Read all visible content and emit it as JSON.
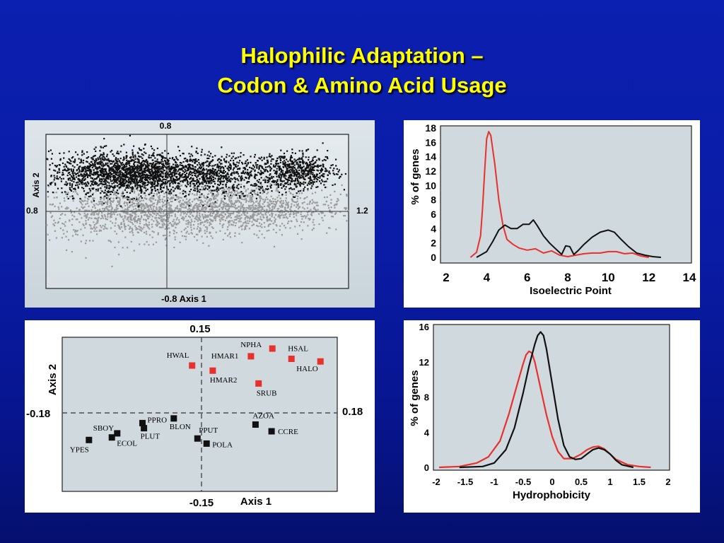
{
  "slide": {
    "title_line1": "Halophilic Adaptation –",
    "title_line2": "Codon  &  Amino Acid Usage"
  },
  "colors": {
    "background": "#0a1ca6",
    "title": "#ffff00",
    "halophile": "#e8302c",
    "non_halophile": "#111111",
    "panel_light": "#cfd9de"
  },
  "chart_data": [
    {
      "type": "scatter",
      "panel": "codon-usage-correspondence",
      "xlabel": "Axis 1",
      "ylabel": "Axis 2",
      "xlim": [
        -0.8,
        1.2
      ],
      "ylim": [
        -0.8,
        0.8
      ],
      "axis_labels": {
        "top": "0.8",
        "left": "0.8",
        "right": "1.2",
        "bottom": "-0.8 Axis 1",
        "side": "Axis 2"
      },
      "series": [
        {
          "color": "#111111",
          "clusters": [
            {
              "center": [
                -0.33,
                0.4
              ],
              "spread": [
                0.22,
                0.11
              ],
              "points": 1400
            },
            {
              "center": [
                0.25,
                0.4
              ],
              "spread": [
                0.32,
                0.1
              ],
              "points": 1200
            },
            {
              "center": [
                0.88,
                0.42
              ],
              "spread": [
                0.12,
                0.09
              ],
              "points": 500
            }
          ]
        },
        {
          "color": "#9a9a9a",
          "clusters": [
            {
              "center": [
                -0.15,
                0.0
              ],
              "spread": [
                0.38,
                0.14
              ],
              "points": 1300
            },
            {
              "center": [
                0.55,
                0.04
              ],
              "spread": [
                0.3,
                0.12
              ],
              "points": 900
            }
          ]
        }
      ]
    },
    {
      "type": "line",
      "panel": "isoelectric-point-distribution",
      "xlabel": "Isoelectric Point",
      "ylabel": "% of genes",
      "xlim": [
        2,
        14
      ],
      "ylim": [
        0,
        18
      ],
      "xticks": [
        "2",
        "4",
        "6",
        "8",
        "10",
        "12",
        "14"
      ],
      "yticks": [
        "0",
        "2",
        "4",
        "6",
        "8",
        "10",
        "12",
        "14",
        "16",
        "18"
      ],
      "series": [
        {
          "color": "#e8302c",
          "x": [
            3.2,
            3.5,
            3.7,
            3.8,
            3.9,
            4.0,
            4.1,
            4.2,
            4.4,
            4.6,
            4.8,
            5.0,
            5.3,
            5.6,
            6.0,
            6.4,
            6.8,
            7.2,
            7.6,
            8.0,
            8.4,
            8.8,
            9.2,
            9.6,
            10.0,
            10.4,
            10.8,
            11.2,
            11.6,
            12.0
          ],
          "y": [
            0.0,
            0.7,
            3.0,
            7.0,
            12.0,
            16.5,
            17.5,
            17.0,
            13.0,
            8.0,
            4.5,
            2.5,
            1.8,
            1.3,
            1.0,
            1.2,
            0.6,
            0.9,
            0.3,
            0.1,
            0.3,
            0.5,
            0.6,
            0.6,
            0.8,
            0.8,
            0.5,
            0.6,
            0.2,
            0.0
          ]
        },
        {
          "color": "#111111",
          "x": [
            3.5,
            4.0,
            4.3,
            4.6,
            4.9,
            5.2,
            5.5,
            5.8,
            6.1,
            6.3,
            6.5,
            6.8,
            7.1,
            7.4,
            7.7,
            7.9,
            8.1,
            8.3,
            8.5,
            8.8,
            9.2,
            9.6,
            10.0,
            10.3,
            10.6,
            11.0,
            11.4,
            11.8,
            12.2,
            12.6
          ],
          "y": [
            0.0,
            0.8,
            2.2,
            3.8,
            4.5,
            4.0,
            4.0,
            4.6,
            4.6,
            5.2,
            4.4,
            3.0,
            2.0,
            1.2,
            0.4,
            1.6,
            1.5,
            0.4,
            0.9,
            1.8,
            2.8,
            3.5,
            3.8,
            3.5,
            2.6,
            1.5,
            0.6,
            0.3,
            0.1,
            0.0
          ]
        }
      ]
    },
    {
      "type": "scatter",
      "panel": "amino-acid-usage-correspondence",
      "xlabel": "Axis 1",
      "ylabel": "Axis 2",
      "xlim": [
        -0.18,
        0.18
      ],
      "ylim": [
        -0.15,
        0.15
      ],
      "axis_labels": {
        "top": "0.15",
        "left": "-0.18",
        "right": "0.18",
        "bottom": "-0.15"
      },
      "points": [
        {
          "label": "HWAL",
          "x": -0.01,
          "y": 0.095,
          "group": "halophile"
        },
        {
          "label": "NPHA",
          "x": 0.095,
          "y": 0.128,
          "group": "halophile"
        },
        {
          "label": "HMAR1",
          "x": 0.067,
          "y": 0.113,
          "group": "halophile"
        },
        {
          "label": "HSAL",
          "x": 0.12,
          "y": 0.108,
          "group": "halophile"
        },
        {
          "label": "HALO",
          "x": 0.158,
          "y": 0.103,
          "group": "halophile"
        },
        {
          "label": "HMAR2",
          "x": 0.017,
          "y": 0.085,
          "group": "halophile"
        },
        {
          "label": "SRUB",
          "x": 0.077,
          "y": 0.06,
          "group": "halophile"
        },
        {
          "label": "BLON",
          "x": -0.034,
          "y": -0.008,
          "group": "non-halophile"
        },
        {
          "label": "PPRO",
          "x": -0.075,
          "y": -0.017,
          "group": "non-halophile"
        },
        {
          "label": "PLUT",
          "x": -0.073,
          "y": -0.027,
          "group": "non-halophile"
        },
        {
          "label": "SBOY",
          "x": -0.108,
          "y": -0.037,
          "group": "non-halophile"
        },
        {
          "label": "ECOL",
          "x": -0.115,
          "y": -0.045,
          "group": "non-halophile"
        },
        {
          "label": "YPES",
          "x": -0.145,
          "y": -0.05,
          "group": "non-halophile"
        },
        {
          "label": "PPUT",
          "x": -0.003,
          "y": -0.047,
          "group": "non-halophile"
        },
        {
          "label": "POLA",
          "x": 0.009,
          "y": -0.057,
          "group": "non-halophile"
        },
        {
          "label": "AZOA",
          "x": 0.073,
          "y": -0.02,
          "group": "non-halophile"
        },
        {
          "label": "CCRE",
          "x": 0.094,
          "y": -0.033,
          "group": "non-halophile"
        }
      ]
    },
    {
      "type": "line",
      "panel": "hydrophobicity-distribution",
      "xlabel": "Hydrophobicity",
      "ylabel": "% of genes",
      "xlim": [
        -2,
        2
      ],
      "ylim": [
        0,
        16
      ],
      "xticks": [
        "-2",
        "-1.5",
        "-1",
        "-0.5",
        "0",
        "0.5",
        "1",
        "1.5",
        "2"
      ],
      "yticks": [
        "0",
        "4",
        "8",
        "12",
        "16"
      ],
      "series": [
        {
          "color": "#e8302c",
          "x": [
            -1.95,
            -1.6,
            -1.3,
            -1.1,
            -0.9,
            -0.75,
            -0.6,
            -0.5,
            -0.45,
            -0.4,
            -0.35,
            -0.3,
            -0.2,
            -0.1,
            0.0,
            0.1,
            0.2,
            0.35,
            0.5,
            0.6,
            0.7,
            0.8,
            0.9,
            1.0,
            1.1,
            1.3,
            1.5,
            1.7
          ],
          "y": [
            0.0,
            0.1,
            0.5,
            1.2,
            3.0,
            6.0,
            9.5,
            11.8,
            12.8,
            13.2,
            13.0,
            12.0,
            9.0,
            6.0,
            3.5,
            1.8,
            1.0,
            1.0,
            1.5,
            2.0,
            2.3,
            2.4,
            2.1,
            1.5,
            0.9,
            0.3,
            0.1,
            0.0
          ]
        },
        {
          "color": "#111111",
          "x": [
            -1.6,
            -1.2,
            -1.0,
            -0.8,
            -0.65,
            -0.5,
            -0.4,
            -0.3,
            -0.25,
            -0.2,
            -0.15,
            -0.1,
            0.0,
            0.1,
            0.2,
            0.3,
            0.4,
            0.5,
            0.6,
            0.7,
            0.8,
            0.9,
            1.0,
            1.1,
            1.2,
            1.4
          ],
          "y": [
            0.0,
            0.1,
            0.5,
            2.0,
            4.5,
            8.5,
            11.5,
            14.0,
            15.0,
            15.4,
            15.0,
            13.5,
            9.5,
            5.5,
            2.5,
            1.2,
            0.9,
            1.0,
            1.5,
            2.0,
            2.2,
            2.0,
            1.5,
            0.8,
            0.3,
            0.0
          ]
        }
      ]
    }
  ]
}
